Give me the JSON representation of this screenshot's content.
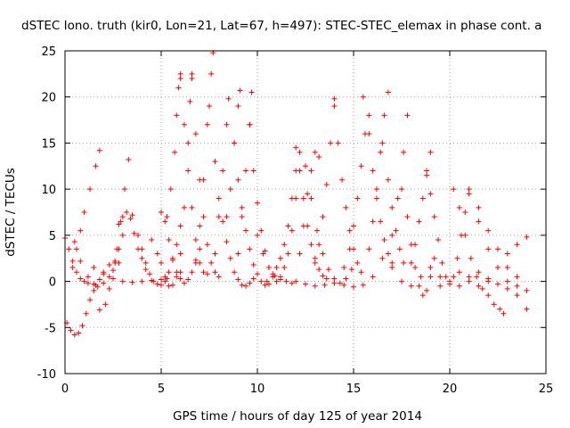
{
  "chart_data": {
    "type": "scatter",
    "title": "dSTEC Iono. truth (kir0, Lon=21, Lat=67, h=497): STEC-STEC_elemax in phase cont. a",
    "xlabel": "GPS time / hours of day 125 of year 2014",
    "ylabel": "dSTEC  / TECUs",
    "xlim": [
      0,
      25
    ],
    "ylim": [
      -10,
      25
    ],
    "xticks": [
      0,
      5,
      10,
      15,
      20,
      25
    ],
    "yticks": [
      -10,
      -5,
      0,
      5,
      10,
      15,
      20,
      25
    ],
    "xtick_labels": [
      "0",
      "5",
      "10",
      "15",
      "20",
      "25"
    ],
    "ytick_labels": [
      "-10",
      "-5",
      "0",
      "5",
      "10",
      "15",
      "20",
      "25"
    ],
    "grid": true,
    "marker": "plus",
    "color": "#ff0000",
    "series": [
      {
        "x": [
          0.0,
          0.2,
          0.4,
          0.6,
          0.8,
          1.0,
          1.2,
          1.5,
          1.8,
          2.0,
          2.3,
          2.6,
          2.8
        ],
        "y": [
          4.7,
          3.5,
          2.2,
          1.0,
          0.3,
          0.0,
          -0.2,
          -0.3,
          0.2,
          0.8,
          1.8,
          2.2,
          2.0
        ]
      },
      {
        "x": [
          0.1,
          0.3,
          0.5,
          0.7,
          0.9,
          1.1,
          1.3,
          1.5,
          1.7
        ],
        "y": [
          -4.5,
          -5.3,
          -5.8,
          -5.6,
          -4.8,
          -3.5,
          -2.0,
          -1.0,
          -0.6
        ]
      },
      {
        "x": [
          0.4,
          0.6,
          0.8,
          1.0,
          1.3,
          1.6,
          1.8
        ],
        "y": [
          1.5,
          3.5,
          5.5,
          7.5,
          10.0,
          12.5,
          14.2
        ]
      },
      {
        "x": [
          0.5,
          0.8,
          1.2,
          1.6,
          2.0,
          2.3,
          2.6,
          2.8,
          3.0
        ],
        "y": [
          4.3,
          2.2,
          0.5,
          -0.4,
          -0.2,
          0.5,
          2.0,
          3.5,
          5.0
        ]
      },
      {
        "x": [
          1.8,
          2.1,
          2.3,
          2.5,
          2.7,
          2.9,
          3.1,
          3.3
        ],
        "y": [
          -3.1,
          -2.5,
          -0.8,
          1.2,
          3.5,
          6.5,
          10.0,
          13.2
        ]
      },
      {
        "x": [
          1.5,
          2.0,
          2.5,
          3.0,
          3.5,
          4.0,
          4.5,
          5.0,
          5.3
        ],
        "y": [
          1.5,
          1.0,
          0.3,
          0.0,
          -0.1,
          0.0,
          0.1,
          0.2,
          0.3
        ]
      },
      {
        "x": [
          2.8,
          3.0,
          3.2,
          3.4,
          3.6,
          3.8,
          4.0,
          4.2
        ],
        "y": [
          6.2,
          7.0,
          7.5,
          6.8,
          5.2,
          3.5,
          2.5,
          1.3
        ]
      },
      {
        "x": [
          3.5,
          3.8,
          4.0,
          4.2,
          4.4,
          4.6,
          4.8,
          5.0,
          5.2,
          5.4,
          5.6,
          5.8,
          6.0
        ],
        "y": [
          7.2,
          5.0,
          3.5,
          2.0,
          0.8,
          0.0,
          -0.3,
          -0.4,
          0.0,
          1.0,
          2.3,
          4.0,
          6.0
        ]
      },
      {
        "x": [
          4.5,
          4.8,
          5.0,
          5.2,
          5.4,
          5.6,
          5.8,
          6.0
        ],
        "y": [
          4.5,
          3.0,
          2.0,
          0.5,
          -0.5,
          -0.4,
          0.5,
          1.0
        ]
      },
      {
        "x": [
          5.0,
          5.2,
          5.4,
          5.6,
          5.8,
          6.0,
          6.2,
          6.4,
          6.6,
          6.8,
          7.0
        ],
        "y": [
          7.5,
          6.5,
          4.5,
          2.5,
          1.0,
          0.3,
          -0.2,
          0.2,
          1.0,
          2.3,
          3.5
        ]
      },
      {
        "x": [
          5.3,
          5.5,
          5.7,
          5.8,
          5.9,
          6.0
        ],
        "y": [
          7.0,
          10.0,
          14.0,
          18.0,
          21.0,
          22.5
        ]
      },
      {
        "x": [
          6.0,
          6.2,
          6.4,
          6.6,
          6.8,
          7.0,
          7.2,
          7.4
        ],
        "y": [
          22.0,
          17.0,
          12.0,
          8.0,
          4.5,
          2.0,
          1.0,
          0.8
        ]
      },
      {
        "x": [
          6.0,
          6.2,
          6.4,
          6.5,
          6.6
        ],
        "y": [
          3.0,
          8.0,
          15.0,
          19.5,
          22.5
        ]
      },
      {
        "x": [
          6.6,
          6.8,
          7.0,
          7.2,
          7.4,
          7.6,
          7.8,
          8.0
        ],
        "y": [
          22.0,
          16.0,
          11.0,
          7.0,
          4.0,
          2.0,
          1.0,
          0.5
        ]
      },
      {
        "x": [
          6.8,
          7.0,
          7.2,
          7.4,
          7.6,
          7.7
        ],
        "y": [
          2.0,
          6.0,
          11.0,
          17.0,
          22.5,
          24.8
        ]
      },
      {
        "x": [
          7.5,
          7.8,
          8.0,
          8.2,
          8.4,
          8.6,
          8.8,
          9.0,
          9.2,
          9.4,
          9.6,
          9.8
        ],
        "y": [
          19.0,
          13.0,
          9.0,
          6.5,
          4.3,
          2.5,
          1.0,
          0.2,
          -0.4,
          -0.5,
          -0.2,
          0.3
        ]
      },
      {
        "x": [
          7.8,
          8.0,
          8.2,
          8.4,
          8.5
        ],
        "y": [
          3.0,
          7.0,
          12.0,
          17.0,
          19.8
        ]
      },
      {
        "x": [
          8.4,
          8.6,
          8.8,
          9.0,
          9.1
        ],
        "y": [
          7.0,
          10.0,
          15.0,
          19.0,
          20.7
        ]
      },
      {
        "x": [
          8.8,
          9.0,
          9.2,
          9.4,
          9.6,
          9.8,
          10.0,
          10.2,
          10.4,
          10.6
        ],
        "y": [
          15.0,
          11.0,
          8.0,
          5.5,
          3.5,
          1.8,
          0.8,
          0.0,
          -0.4,
          -0.3
        ]
      },
      {
        "x": [
          9.0,
          9.2,
          9.4,
          9.6,
          9.7
        ],
        "y": [
          3.0,
          7.0,
          12.0,
          17.0,
          20.5
        ]
      },
      {
        "x": [
          9.6,
          9.8,
          10.0,
          10.2,
          10.4,
          10.6,
          10.8,
          11.0,
          11.2,
          11.4,
          11.6,
          11.8,
          12.0
        ],
        "y": [
          17.0,
          12.0,
          8.5,
          5.5,
          3.3,
          1.5,
          0.5,
          0.0,
          0.5,
          1.5,
          3.0,
          5.5,
          9.0
        ]
      },
      {
        "x": [
          10.0,
          10.3,
          10.6,
          10.9,
          11.2,
          11.5,
          11.8
        ],
        "y": [
          5.0,
          3.0,
          1.5,
          0.6,
          0.2,
          0.0,
          -0.2
        ]
      },
      {
        "x": [
          10.5,
          10.8,
          11.0,
          11.2,
          11.4,
          11.6,
          11.8,
          12.0,
          12.2
        ],
        "y": [
          0.0,
          0.8,
          1.5,
          2.5,
          4.0,
          6.0,
          9.0,
          12.0,
          14.0
        ]
      },
      {
        "x": [
          12.0,
          12.2,
          12.4,
          12.6,
          12.8,
          13.0,
          13.2,
          13.4,
          13.6
        ],
        "y": [
          14.5,
          12.0,
          9.0,
          6.0,
          4.0,
          2.5,
          1.3,
          0.6,
          0.3
        ]
      },
      {
        "x": [
          12.2,
          12.4,
          12.6,
          12.8,
          13.0,
          13.2
        ],
        "y": [
          3.0,
          6.0,
          9.5,
          12.0,
          14.0,
          13.5
        ]
      },
      {
        "x": [
          12.5,
          12.8,
          13.1,
          13.4,
          13.7,
          14.0,
          14.3,
          14.6,
          14.9
        ],
        "y": [
          12.5,
          9.0,
          5.5,
          3.0,
          1.3,
          0.3,
          -0.2,
          0.3,
          1.3
        ]
      },
      {
        "x": [
          12.0,
          12.5,
          13.0,
          13.5,
          14.0,
          14.5,
          15.0,
          15.5
        ],
        "y": [
          0.0,
          -0.3,
          -0.5,
          -0.4,
          -0.2,
          -0.4,
          -0.6,
          -0.4
        ]
      },
      {
        "x": [
          13.0,
          13.2,
          13.4,
          13.6,
          13.8,
          14.0
        ],
        "y": [
          2.0,
          4.0,
          7.0,
          10.5,
          15.0,
          19.8
        ]
      },
      {
        "x": [
          14.0,
          14.2,
          14.4,
          14.6,
          14.8,
          15.0,
          15.2,
          15.4
        ],
        "y": [
          19.0,
          15.0,
          11.0,
          8.0,
          5.5,
          3.5,
          2.0,
          1.0
        ]
      },
      {
        "x": [
          14.5,
          14.8,
          15.0,
          15.2,
          15.4,
          15.6,
          15.8
        ],
        "y": [
          1.5,
          3.5,
          6.0,
          9.0,
          12.5,
          16.0,
          18.0
        ]
      },
      {
        "x": [
          15.5,
          15.8,
          16.0,
          16.2,
          16.4,
          16.6,
          16.8,
          17.0
        ],
        "y": [
          20.0,
          16.0,
          12.0,
          9.0,
          6.5,
          4.5,
          3.0,
          2.0
        ]
      },
      {
        "x": [
          15.8,
          16.0,
          16.2,
          16.4,
          16.6,
          16.8
        ],
        "y": [
          3.5,
          6.5,
          10.0,
          14.0,
          18.0,
          20.5
        ]
      },
      {
        "x": [
          16.5,
          16.8,
          17.0,
          17.2,
          17.4,
          17.6
        ],
        "y": [
          15.0,
          11.0,
          8.0,
          5.5,
          3.5,
          2.0
        ]
      },
      {
        "x": [
          16.0,
          16.5,
          17.0,
          17.3,
          17.6,
          17.8
        ],
        "y": [
          0.5,
          2.5,
          5.0,
          9.0,
          14.0,
          18.0
        ]
      },
      {
        "x": [
          17.5,
          17.8,
          18.0,
          18.2,
          18.4,
          18.6,
          18.8,
          19.0,
          19.2
        ],
        "y": [
          10.0,
          7.0,
          4.0,
          1.5,
          -0.5,
          -1.5,
          -1.0,
          0.5,
          2.5
        ]
      },
      {
        "x": [
          18.0,
          18.2,
          18.4,
          18.6,
          18.8,
          19.0
        ],
        "y": [
          2.0,
          4.0,
          6.5,
          9.0,
          11.5,
          14.0
        ]
      },
      {
        "x": [
          18.8,
          19.0,
          19.2,
          19.4,
          19.6,
          19.8,
          20.0,
          20.2,
          20.4,
          20.6,
          20.8,
          21.0
        ],
        "y": [
          12.0,
          9.5,
          7.0,
          4.5,
          2.0,
          0.5,
          -0.3,
          0.5,
          2.5,
          5.0,
          7.5,
          10.0
        ]
      },
      {
        "x": [
          17.0,
          17.5,
          18.0,
          18.5,
          19.0,
          19.5
        ],
        "y": [
          1.5,
          0.0,
          -0.5,
          0.5,
          1.5,
          -0.5
        ]
      },
      {
        "x": [
          20.2,
          20.5,
          20.8,
          21.1,
          21.4,
          21.7,
          22.0,
          22.3,
          22.6,
          22.8
        ],
        "y": [
          10.0,
          8.0,
          5.0,
          2.5,
          0.5,
          -0.8,
          -1.5,
          -2.5,
          -3.0,
          -3.5
        ]
      },
      {
        "x": [
          21.0,
          21.5,
          22.0,
          22.5,
          23.0,
          23.5,
          24.0
        ],
        "y": [
          9.5,
          6.5,
          3.5,
          1.5,
          0.0,
          -1.5,
          -3.0
        ]
      },
      {
        "x": [
          20.5,
          21.0,
          21.5,
          22.0,
          22.5,
          23.0,
          23.5,
          24.0
        ],
        "y": [
          1.0,
          0.0,
          -0.5,
          0.3,
          1.5,
          3.0,
          4.0,
          4.8
        ]
      },
      {
        "x": [
          19.5,
          20.0,
          20.5,
          21.0,
          21.5,
          22.0,
          22.5,
          23.0,
          23.5,
          24.0
        ],
        "y": [
          0.5,
          0.0,
          -0.5,
          0.5,
          1.0,
          0.0,
          -0.3,
          -0.8,
          -0.5,
          -1.0
        ]
      },
      {
        "x": [
          21.5,
          22.0,
          22.5,
          23.0,
          23.5
        ],
        "y": [
          8.0,
          5.5,
          3.5,
          1.5,
          0.5
        ]
      }
    ]
  }
}
